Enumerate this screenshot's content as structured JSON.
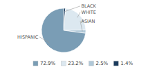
{
  "chart_data": {
    "type": "pie",
    "categories": [
      "BLACK",
      "WHITE",
      "ASIAN",
      "HISPANIC"
    ],
    "values": [
      1.4,
      23.2,
      2.5,
      72.9
    ],
    "value_labels": [
      "1.4%",
      "23.2%",
      "2.5%",
      "72.9%"
    ],
    "colors": [
      "#1a3a5c",
      "#dce8f0",
      "#b0c8d8",
      "#7a9db5"
    ],
    "legend": "bottom"
  }
}
